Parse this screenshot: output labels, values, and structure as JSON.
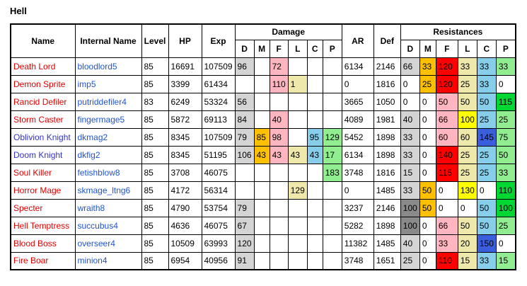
{
  "title": "Hell",
  "colors": {
    "name_text": {
      "red": "#e00000",
      "blue": "#3333cc"
    },
    "internal_text": "#2255cc",
    "grid": "#000000",
    "cells": {
      "gray": "#d4d4d4",
      "darkgray": "#8a8a8a",
      "orange": "#ffc000",
      "pink": "#ffb6c1",
      "red": "#ff0000",
      "khaki": "#eee8aa",
      "yellow": "#ffff00",
      "sky": "#87ceeb",
      "blue": "#3a5fdd",
      "lightgreen": "#90ee90",
      "green": "#00d733"
    }
  },
  "table": {
    "headers": {
      "name": "Name",
      "internal": "Internal Name",
      "level": "Level",
      "hp": "HP",
      "exp": "Exp",
      "damage": "Damage",
      "ar": "AR",
      "def": "Def",
      "resist": "Resistances",
      "sub": [
        "D",
        "M",
        "F",
        "L",
        "C",
        "P"
      ]
    },
    "rows": [
      {
        "name": "Death Lord",
        "name_color": "red",
        "internal": "bloodlord5",
        "level": "85",
        "hp": "16691",
        "exp": "107509",
        "damage": [
          {
            "v": "96",
            "c": "gray"
          },
          {
            "v": "",
            "c": ""
          },
          {
            "v": "72",
            "c": "pink"
          },
          {
            "v": "",
            "c": ""
          },
          {
            "v": "",
            "c": ""
          },
          {
            "v": "",
            "c": ""
          }
        ],
        "ar": "6134",
        "def": "2146",
        "resist": [
          {
            "v": "66",
            "c": "gray"
          },
          {
            "v": "33",
            "c": "orange"
          },
          {
            "v": "120",
            "c": "red"
          },
          {
            "v": "33",
            "c": "khaki"
          },
          {
            "v": "33",
            "c": "sky"
          },
          {
            "v": "33",
            "c": "lightgreen"
          }
        ]
      },
      {
        "name": "Demon Sprite",
        "name_color": "red",
        "internal": "imp5",
        "level": "85",
        "hp": "3399",
        "exp": "61434",
        "damage": [
          {
            "v": "",
            "c": ""
          },
          {
            "v": "",
            "c": ""
          },
          {
            "v": "110",
            "c": "pink"
          },
          {
            "v": "1",
            "c": "khaki"
          },
          {
            "v": "",
            "c": ""
          },
          {
            "v": "",
            "c": ""
          }
        ],
        "ar": "0",
        "def": "1816",
        "resist": [
          {
            "v": "0",
            "c": ""
          },
          {
            "v": "25",
            "c": "orange"
          },
          {
            "v": "120",
            "c": "red"
          },
          {
            "v": "25",
            "c": "khaki"
          },
          {
            "v": "33",
            "c": "sky"
          },
          {
            "v": "0",
            "c": ""
          }
        ]
      },
      {
        "name": "Rancid Defiler",
        "name_color": "red",
        "internal": "putriddefiler4",
        "level": "83",
        "hp": "6249",
        "exp": "53324",
        "damage": [
          {
            "v": "56",
            "c": "gray"
          },
          {
            "v": "",
            "c": ""
          },
          {
            "v": "",
            "c": ""
          },
          {
            "v": "",
            "c": ""
          },
          {
            "v": "",
            "c": ""
          },
          {
            "v": "",
            "c": ""
          }
        ],
        "ar": "3665",
        "def": "1050",
        "resist": [
          {
            "v": "0",
            "c": ""
          },
          {
            "v": "0",
            "c": ""
          },
          {
            "v": "50",
            "c": "pink"
          },
          {
            "v": "50",
            "c": "khaki"
          },
          {
            "v": "50",
            "c": "sky"
          },
          {
            "v": "115",
            "c": "green"
          }
        ]
      },
      {
        "name": "Storm Caster",
        "name_color": "red",
        "internal": "fingermage5",
        "level": "85",
        "hp": "5872",
        "exp": "69113",
        "damage": [
          {
            "v": "84",
            "c": "gray"
          },
          {
            "v": "",
            "c": ""
          },
          {
            "v": "40",
            "c": "pink"
          },
          {
            "v": "",
            "c": ""
          },
          {
            "v": "",
            "c": ""
          },
          {
            "v": "",
            "c": ""
          }
        ],
        "ar": "4089",
        "def": "1981",
        "resist": [
          {
            "v": "40",
            "c": "gray"
          },
          {
            "v": "0",
            "c": ""
          },
          {
            "v": "66",
            "c": "pink"
          },
          {
            "v": "100",
            "c": "yellow"
          },
          {
            "v": "25",
            "c": "sky"
          },
          {
            "v": "25",
            "c": "lightgreen"
          }
        ]
      },
      {
        "name": "Oblivion Knight",
        "name_color": "blue",
        "internal": "dkmag2",
        "level": "85",
        "hp": "8345",
        "exp": "107509",
        "damage": [
          {
            "v": "79",
            "c": "gray"
          },
          {
            "v": "85",
            "c": "orange"
          },
          {
            "v": "98",
            "c": "pink"
          },
          {
            "v": "",
            "c": ""
          },
          {
            "v": "95",
            "c": "sky"
          },
          {
            "v": "129",
            "c": "lightgreen"
          }
        ],
        "ar": "5452",
        "def": "1898",
        "resist": [
          {
            "v": "33",
            "c": "gray"
          },
          {
            "v": "0",
            "c": ""
          },
          {
            "v": "60",
            "c": "pink"
          },
          {
            "v": "60",
            "c": "khaki"
          },
          {
            "v": "145",
            "c": "blue"
          },
          {
            "v": "75",
            "c": "lightgreen"
          }
        ]
      },
      {
        "name": "Doom Knight",
        "name_color": "blue",
        "internal": "dkfig2",
        "level": "85",
        "hp": "8345",
        "exp": "51195",
        "damage": [
          {
            "v": "106",
            "c": "gray"
          },
          {
            "v": "43",
            "c": "orange"
          },
          {
            "v": "43",
            "c": "pink"
          },
          {
            "v": "43",
            "c": "khaki"
          },
          {
            "v": "43",
            "c": "sky"
          },
          {
            "v": "17",
            "c": "lightgreen"
          }
        ],
        "ar": "6134",
        "def": "1898",
        "resist": [
          {
            "v": "33",
            "c": "gray"
          },
          {
            "v": "0",
            "c": ""
          },
          {
            "v": "140",
            "c": "red"
          },
          {
            "v": "25",
            "c": "khaki"
          },
          {
            "v": "25",
            "c": "sky"
          },
          {
            "v": "50",
            "c": "lightgreen"
          }
        ]
      },
      {
        "name": "Soul Killer",
        "name_color": "red",
        "internal": "fetishblow8",
        "level": "85",
        "hp": "3708",
        "exp": "46075",
        "damage": [
          {
            "v": "",
            "c": ""
          },
          {
            "v": "",
            "c": ""
          },
          {
            "v": "",
            "c": ""
          },
          {
            "v": "",
            "c": ""
          },
          {
            "v": "",
            "c": ""
          },
          {
            "v": "183",
            "c": "lightgreen"
          }
        ],
        "ar": "3748",
        "def": "1816",
        "resist": [
          {
            "v": "15",
            "c": "gray"
          },
          {
            "v": "0",
            "c": ""
          },
          {
            "v": "115",
            "c": "red"
          },
          {
            "v": "25",
            "c": "khaki"
          },
          {
            "v": "25",
            "c": "sky"
          },
          {
            "v": "33",
            "c": "lightgreen"
          }
        ]
      },
      {
        "name": "Horror Mage",
        "name_color": "red",
        "internal": "skmage_ltng6",
        "level": "85",
        "hp": "4172",
        "exp": "56314",
        "damage": [
          {
            "v": "",
            "c": ""
          },
          {
            "v": "",
            "c": ""
          },
          {
            "v": "",
            "c": ""
          },
          {
            "v": "129",
            "c": "khaki"
          },
          {
            "v": "",
            "c": ""
          },
          {
            "v": "",
            "c": ""
          }
        ],
        "ar": "0",
        "def": "1485",
        "resist": [
          {
            "v": "33",
            "c": "gray"
          },
          {
            "v": "50",
            "c": "orange"
          },
          {
            "v": "0",
            "c": ""
          },
          {
            "v": "130",
            "c": "yellow"
          },
          {
            "v": "0",
            "c": ""
          },
          {
            "v": "110",
            "c": "green"
          }
        ]
      },
      {
        "name": "Specter",
        "name_color": "red",
        "internal": "wraith8",
        "level": "85",
        "hp": "4790",
        "exp": "53754",
        "damage": [
          {
            "v": "79",
            "c": "gray"
          },
          {
            "v": "",
            "c": ""
          },
          {
            "v": "",
            "c": ""
          },
          {
            "v": "",
            "c": ""
          },
          {
            "v": "",
            "c": ""
          },
          {
            "v": "",
            "c": ""
          }
        ],
        "ar": "3237",
        "def": "2146",
        "resist": [
          {
            "v": "100",
            "c": "darkgray"
          },
          {
            "v": "50",
            "c": "orange"
          },
          {
            "v": "0",
            "c": ""
          },
          {
            "v": "0",
            "c": ""
          },
          {
            "v": "50",
            "c": "sky"
          },
          {
            "v": "100",
            "c": "green"
          }
        ]
      },
      {
        "name": "Hell Temptress",
        "name_color": "red",
        "internal": "succubus4",
        "level": "85",
        "hp": "4636",
        "exp": "46075",
        "damage": [
          {
            "v": "67",
            "c": "gray"
          },
          {
            "v": "",
            "c": ""
          },
          {
            "v": "",
            "c": ""
          },
          {
            "v": "",
            "c": ""
          },
          {
            "v": "",
            "c": ""
          },
          {
            "v": "",
            "c": ""
          }
        ],
        "ar": "5282",
        "def": "1898",
        "resist": [
          {
            "v": "100",
            "c": "darkgray"
          },
          {
            "v": "0",
            "c": ""
          },
          {
            "v": "66",
            "c": "pink"
          },
          {
            "v": "50",
            "c": "khaki"
          },
          {
            "v": "50",
            "c": "sky"
          },
          {
            "v": "25",
            "c": "lightgreen"
          }
        ]
      },
      {
        "name": "Blood Boss",
        "name_color": "red",
        "internal": "overseer4",
        "level": "85",
        "hp": "10509",
        "exp": "63993",
        "damage": [
          {
            "v": "120",
            "c": "gray"
          },
          {
            "v": "",
            "c": ""
          },
          {
            "v": "",
            "c": ""
          },
          {
            "v": "",
            "c": ""
          },
          {
            "v": "",
            "c": ""
          },
          {
            "v": "",
            "c": ""
          }
        ],
        "ar": "11382",
        "def": "1485",
        "resist": [
          {
            "v": "40",
            "c": "gray"
          },
          {
            "v": "0",
            "c": ""
          },
          {
            "v": "33",
            "c": "pink"
          },
          {
            "v": "20",
            "c": "khaki"
          },
          {
            "v": "150",
            "c": "blue"
          },
          {
            "v": "0",
            "c": ""
          }
        ]
      },
      {
        "name": "Fire Boar",
        "name_color": "red",
        "internal": "minion4",
        "level": "85",
        "hp": "6954",
        "exp": "40956",
        "damage": [
          {
            "v": "91",
            "c": "gray"
          },
          {
            "v": "",
            "c": ""
          },
          {
            "v": "",
            "c": ""
          },
          {
            "v": "",
            "c": ""
          },
          {
            "v": "",
            "c": ""
          },
          {
            "v": "",
            "c": ""
          }
        ],
        "ar": "3748",
        "def": "1651",
        "resist": [
          {
            "v": "25",
            "c": "gray"
          },
          {
            "v": "0",
            "c": ""
          },
          {
            "v": "110",
            "c": "red"
          },
          {
            "v": "15",
            "c": "khaki"
          },
          {
            "v": "33",
            "c": "sky"
          },
          {
            "v": "15",
            "c": "lightgreen"
          }
        ]
      }
    ]
  }
}
